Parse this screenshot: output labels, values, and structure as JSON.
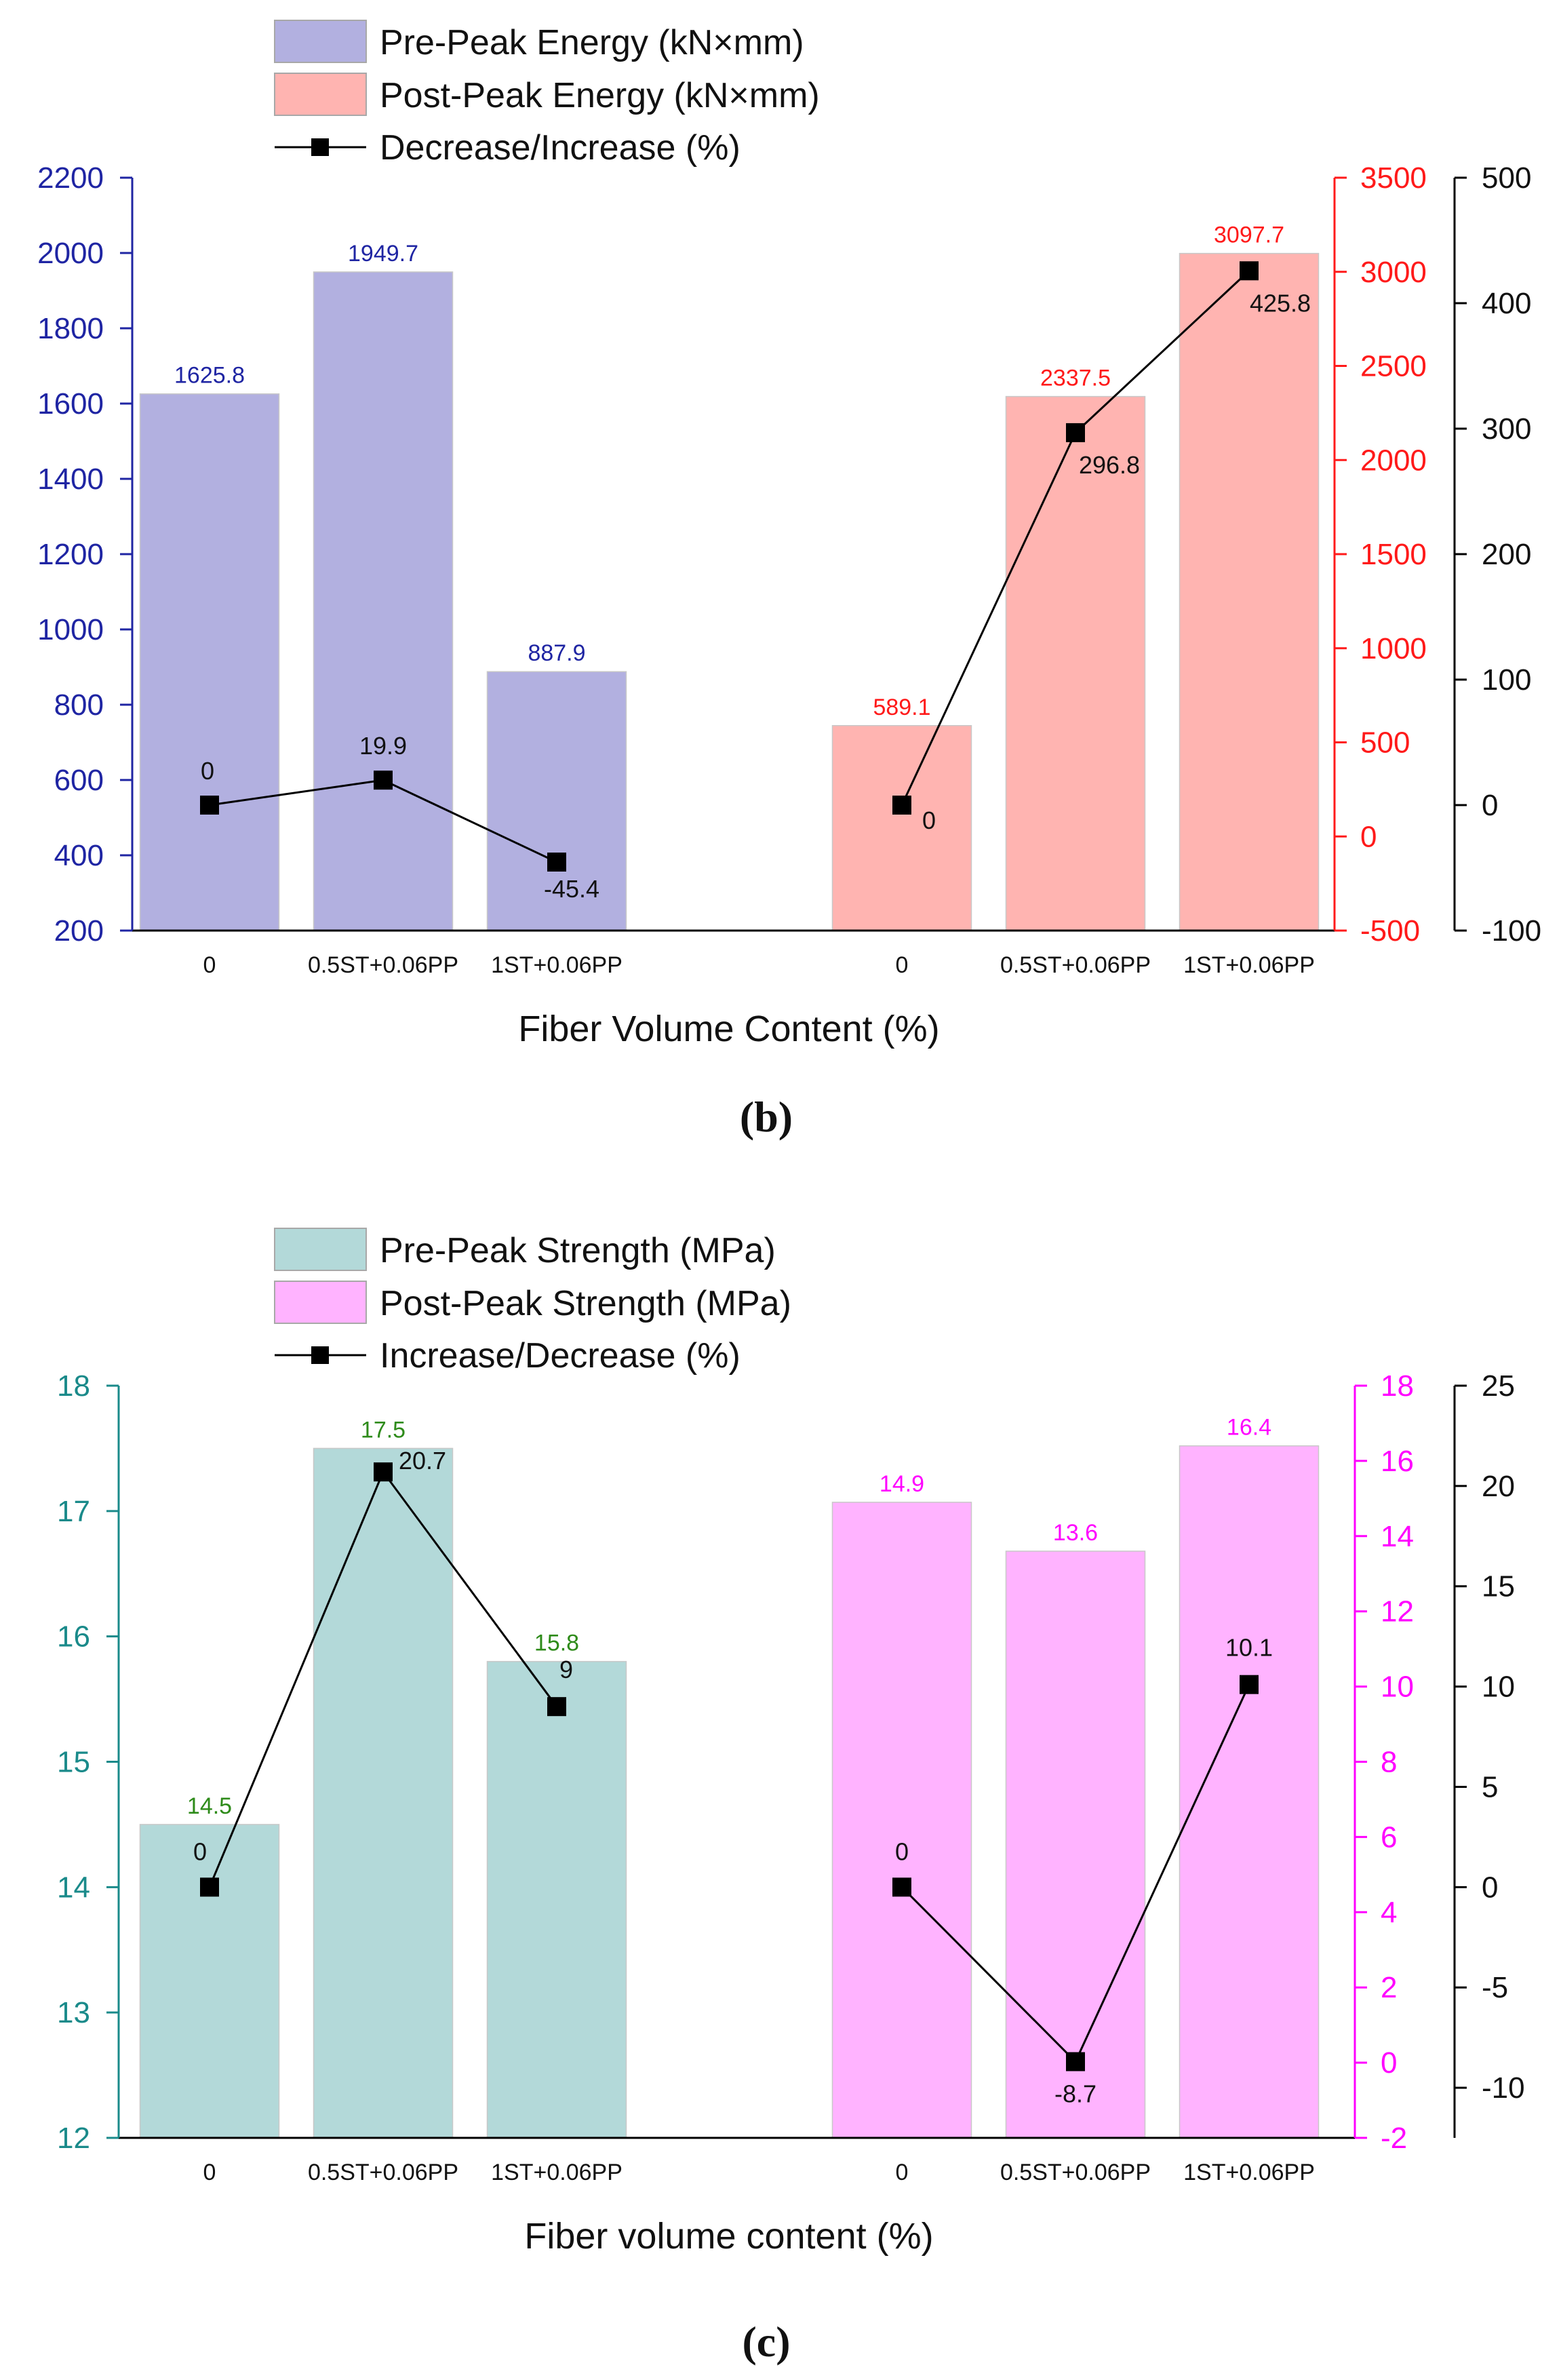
{
  "chart_data": [
    {
      "panel": "b",
      "caption": "(b)",
      "type": "bar",
      "xlabel": "Fiber Volume Content (%)",
      "legend": {
        "pre": "Pre-Peak Energy (kN×mm)",
        "post": "Post-Peak Energy (kN×mm)",
        "pct": "Decrease/Increase (%)"
      },
      "legend_position": "top-left",
      "categories": [
        "0",
        "0.5ST+0.06PP",
        "1ST+0.06PP"
      ],
      "series": [
        {
          "name": "Pre-Peak Energy (kN×mm)",
          "axis": "left",
          "values": [
            1625.8,
            1949.7,
            887.9
          ],
          "labels": [
            "1625.8",
            "1949.7",
            "887.9"
          ]
        },
        {
          "name": "Post-Peak Energy (kN×mm)",
          "axis": "right",
          "values": [
            589.1,
            2337.5,
            3097.7
          ],
          "labels": [
            "589.1",
            "2337.5",
            "3097.7"
          ]
        },
        {
          "name": "Decrease/Increase (%) pre",
          "axis": "pct",
          "type": "line",
          "values": [
            0,
            19.9,
            -45.4
          ],
          "labels": [
            "0",
            "19.9",
            "-45.4"
          ]
        },
        {
          "name": "Decrease/Increase (%) post",
          "axis": "pct",
          "type": "line",
          "values": [
            0,
            296.8,
            425.8
          ],
          "labels": [
            "0",
            "296.8",
            "425.8"
          ]
        }
      ],
      "left_axis": {
        "ylim": [
          200,
          2200
        ],
        "ticks": [
          "200",
          "400",
          "600",
          "800",
          "1000",
          "1200",
          "1400",
          "1600",
          "1800",
          "2000",
          "2200"
        ]
      },
      "right_axis": {
        "ylim": [
          -500,
          3500
        ],
        "ticks": [
          "-500",
          "0",
          "500",
          "1000",
          "1500",
          "2000",
          "2500",
          "3000",
          "3500"
        ]
      },
      "pct_axis": {
        "ylim": [
          -100,
          500
        ],
        "ticks": [
          "-100",
          "0",
          "100",
          "200",
          "300",
          "400",
          "500"
        ]
      },
      "colors": {
        "pre": "#b2b0e0",
        "post": "#ffb4b1",
        "left_axis": "#1f25a3",
        "right_axis": "#ff1a1a",
        "pre_label": "#1f25a3",
        "post_label": "#ff1a1a"
      }
    },
    {
      "panel": "c",
      "caption": "(c)",
      "type": "bar",
      "xlabel": "Fiber volume content (%)",
      "legend": {
        "pre": "Pre-Peak Strength (MPa)",
        "post": "Post-Peak Strength (MPa)",
        "pct": "Increase/Decrease (%)"
      },
      "legend_position": "top-left",
      "categories": [
        "0",
        "0.5ST+0.06PP",
        "1ST+0.06PP"
      ],
      "series": [
        {
          "name": "Pre-Peak Strength (MPa)",
          "axis": "left",
          "values": [
            14.5,
            17.5,
            15.8
          ],
          "labels": [
            "14.5",
            "17.5",
            "15.8"
          ]
        },
        {
          "name": "Post-Peak Strength (MPa)",
          "axis": "right",
          "values": [
            14.9,
            13.6,
            16.4
          ],
          "labels": [
            "14.9",
            "13.6",
            "16.4"
          ]
        },
        {
          "name": "Increase/Decrease (%) pre",
          "axis": "pct",
          "type": "line",
          "values": [
            0,
            20.7,
            9
          ],
          "labels": [
            "0",
            "20.7",
            "9"
          ]
        },
        {
          "name": "Increase/Decrease (%) post",
          "axis": "pct",
          "type": "line",
          "values": [
            0,
            -8.7,
            10.1
          ],
          "labels": [
            "0",
            "-8.7",
            "10.1"
          ]
        }
      ],
      "left_axis": {
        "ylim": [
          12,
          18
        ],
        "ticks": [
          "12",
          "13",
          "14",
          "15",
          "16",
          "17",
          "18"
        ]
      },
      "right_axis": {
        "ylim": [
          -2,
          18
        ],
        "ticks": [
          "-2",
          "0",
          "2",
          "4",
          "6",
          "8",
          "10",
          "12",
          "14",
          "16",
          "18"
        ]
      },
      "pct_axis": {
        "ylim": [
          -12.5,
          25
        ],
        "ticks": [
          "-10",
          "-5",
          "0",
          "5",
          "10",
          "15",
          "20",
          "25"
        ]
      },
      "colors": {
        "pre": "#b3d9d9",
        "post": "#ffb3ff",
        "left_axis": "#1a8a8a",
        "right_axis": "#ff00ff",
        "pre_label": "#2e8b1a",
        "post_label": "#ff00ff"
      }
    }
  ]
}
